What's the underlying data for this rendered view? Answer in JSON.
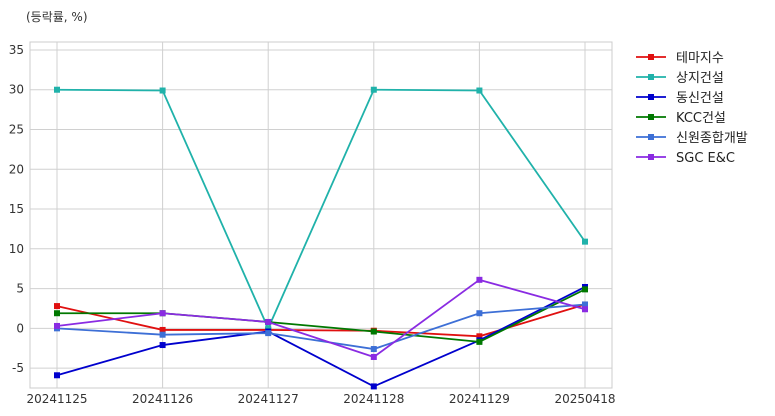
{
  "unit_label": "(등락률, %)",
  "chart_data": {
    "type": "line",
    "x": [
      "20241125",
      "20241126",
      "20241127",
      "20241128",
      "20241129",
      "20250418"
    ],
    "ylim": [
      -7.5,
      36
    ],
    "yticks": [
      -5,
      0,
      5,
      10,
      15,
      20,
      25,
      30,
      35
    ],
    "grid": true,
    "legend": "outside-right",
    "series": [
      {
        "name": "테마지수",
        "color": "#e01010",
        "values": [
          2.8,
          -0.2,
          -0.2,
          -0.3,
          -1.0,
          3.0
        ]
      },
      {
        "name": "상지건설",
        "color": "#20b2aa",
        "values": [
          30.0,
          29.9,
          0.0,
          30.0,
          29.9,
          10.9
        ]
      },
      {
        "name": "동신건설",
        "color": "#0000cd",
        "values": [
          -5.9,
          -2.1,
          -0.4,
          -7.3,
          -1.5,
          5.2
        ]
      },
      {
        "name": "KCC건설",
        "color": "#007800",
        "values": [
          1.9,
          1.9,
          0.8,
          -0.4,
          -1.7,
          4.9
        ]
      },
      {
        "name": "신원종합개발",
        "color": "#3d6fd6",
        "values": [
          0.0,
          -0.8,
          -0.6,
          -2.6,
          1.9,
          3.0
        ]
      },
      {
        "name": "SGC E&C",
        "color": "#8a2be2",
        "values": [
          0.3,
          1.9,
          0.8,
          -3.6,
          6.1,
          2.4
        ]
      }
    ]
  }
}
